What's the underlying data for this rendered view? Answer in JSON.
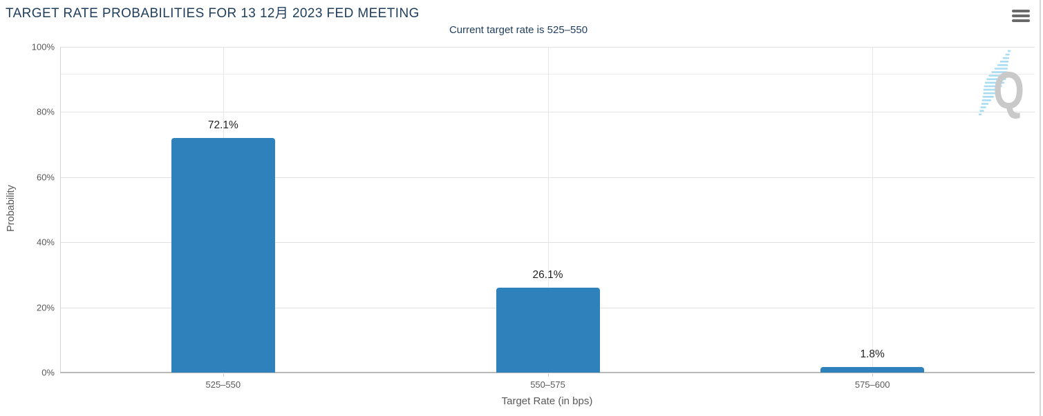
{
  "header": {
    "title": "TARGET RATE PROBABILITIES FOR 13 12月 2023 FED MEETING",
    "subtitle": "Current target rate is 525–550",
    "menu_icon": "hamburger-icon"
  },
  "watermark": {
    "letter": "Q",
    "icon": "quikstrike-logo-icon"
  },
  "colors": {
    "bar": "#2e81ba",
    "title_text": "#1e3d5c",
    "axis_text": "#595959",
    "value_label_text": "#1f1f1f",
    "gridline": "#e2e2e2",
    "watermark_q": "#c9c9c9",
    "watermark_swoosh": "#a8dcf2"
  },
  "chart_data": {
    "type": "bar",
    "title": "TARGET RATE PROBABILITIES FOR 13 12月 2023 FED MEETING",
    "subtitle": "Current target rate is 525–550",
    "categories": [
      "525–550",
      "550–575",
      "575–600"
    ],
    "values": [
      72.1,
      26.1,
      1.8
    ],
    "value_labels": [
      "72.1%",
      "26.1%",
      "1.8%"
    ],
    "xlabel": "Target Rate (in bps)",
    "ylabel": "Probability",
    "ylim": [
      0,
      100
    ],
    "yticks": [
      0,
      20,
      40,
      60,
      80,
      100
    ],
    "ytick_labels": [
      "0%",
      "20%",
      "40%",
      "60%",
      "80%",
      "100%"
    ],
    "extra_gridline_pct": 91.8,
    "grid": true,
    "legend": "none",
    "bar_color": "#2e81ba"
  }
}
